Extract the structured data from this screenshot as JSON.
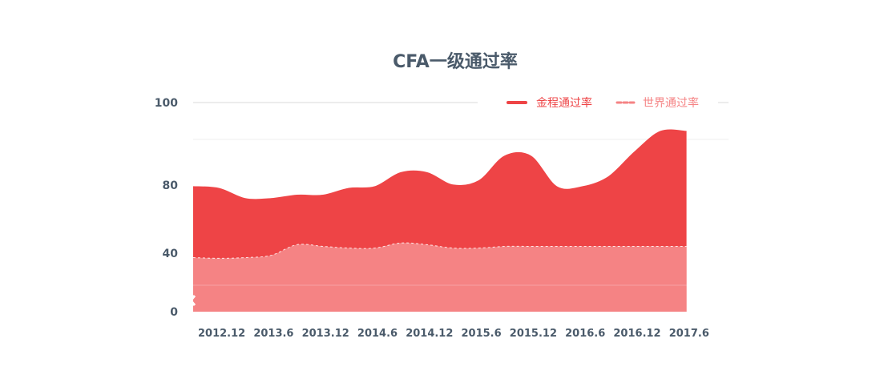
{
  "chart_data": {
    "type": "area",
    "title": "CFA一级通过率",
    "xlabel": "",
    "ylabel": "",
    "categories": [
      "2012.12",
      "2013.6",
      "2013.12",
      "2014.6",
      "2014.12",
      "2015.6",
      "2015.12",
      "2016.6",
      "2016.12",
      "2017.6"
    ],
    "y_ticks": [
      "100",
      "80",
      "40",
      "0"
    ],
    "ylim": [
      0,
      100
    ],
    "legend_position": "top-right",
    "grid": true,
    "series": [
      {
        "name": "金程通过率",
        "color": "#ee4446",
        "line_style": "solid",
        "points": [
          [
            0,
            79
          ],
          [
            0.5,
            78
          ],
          [
            1.0,
            72
          ],
          [
            1.5,
            72
          ],
          [
            2.0,
            74
          ],
          [
            2.5,
            74
          ],
          [
            3.0,
            78
          ],
          [
            3.5,
            79
          ],
          [
            4.0,
            83
          ],
          [
            4.5,
            83
          ],
          [
            5.0,
            80
          ],
          [
            5.5,
            81
          ],
          [
            6.0,
            87
          ],
          [
            6.5,
            87
          ],
          [
            7.0,
            79
          ],
          [
            7.5,
            79
          ],
          [
            8.0,
            82
          ],
          [
            8.5,
            88
          ],
          [
            9.0,
            93
          ],
          [
            9.5,
            93
          ]
        ]
      },
      {
        "name": "世界通过率",
        "color": "#f58384",
        "line_style": "dashed",
        "points": [
          [
            0,
            37
          ],
          [
            0.5,
            36.5
          ],
          [
            1.0,
            37
          ],
          [
            1.5,
            38.5
          ],
          [
            2.0,
            45
          ],
          [
            2.5,
            44
          ],
          [
            3.0,
            43
          ],
          [
            3.5,
            43
          ],
          [
            4.0,
            46
          ],
          [
            4.5,
            45
          ],
          [
            5.0,
            43
          ],
          [
            5.5,
            43
          ],
          [
            6.0,
            44
          ],
          [
            6.5,
            44
          ],
          [
            7.0,
            44
          ],
          [
            7.5,
            44
          ],
          [
            8.0,
            44
          ],
          [
            8.5,
            44
          ],
          [
            9.0,
            44
          ],
          [
            9.5,
            44
          ]
        ]
      }
    ]
  }
}
